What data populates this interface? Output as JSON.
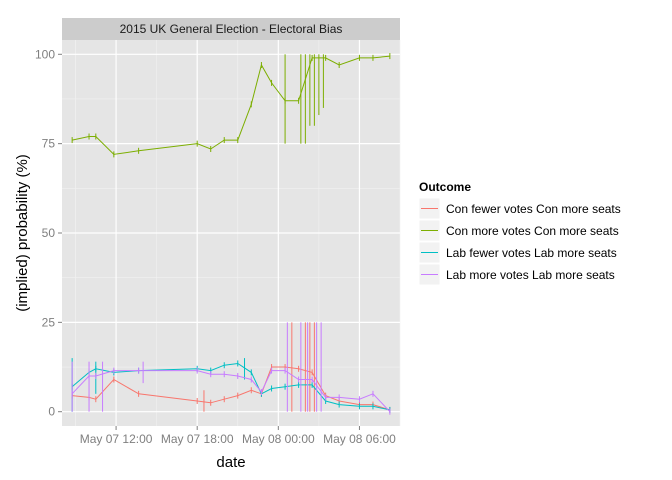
{
  "chart_data": {
    "type": "line",
    "title": "2015 UK General Election - Electoral Bias",
    "xlabel": "date",
    "ylabel": "(implied) probability (%)",
    "x_is_time": true,
    "x_range": [
      "2015-05-07T08:00",
      "2015-05-08T09:00"
    ],
    "ylim": [
      -4,
      104
    ],
    "x_ticks": [
      {
        "value": "2015-05-07T12:00",
        "label": "May 07 12:00"
      },
      {
        "value": "2015-05-07T18:00",
        "label": "May 07 18:00"
      },
      {
        "value": "2015-05-08T00:00",
        "label": "May 08 00:00"
      },
      {
        "value": "2015-05-08T06:00",
        "label": "May 08 06:00"
      }
    ],
    "y_ticks": [
      0,
      25,
      50,
      75,
      100
    ],
    "grid": true,
    "legend": {
      "title": "Outcome",
      "position": "right"
    },
    "series": [
      {
        "name": "Con fewer votes Con more seats",
        "color": "#F8766D",
        "points": [
          [
            "2015-05-07T08:45",
            4.5
          ],
          [
            "2015-05-07T10:00",
            4.0
          ],
          [
            "2015-05-07T10:30",
            3.5
          ],
          [
            "2015-05-07T11:50",
            9.0
          ],
          [
            "2015-05-07T13:40",
            5.0
          ],
          [
            "2015-05-07T18:00",
            3.0
          ],
          [
            "2015-05-07T19:00",
            2.5
          ],
          [
            "2015-05-07T20:00",
            3.5
          ],
          [
            "2015-05-07T21:00",
            4.5
          ],
          [
            "2015-05-07T22:00",
            6.0
          ],
          [
            "2015-05-07T22:45",
            5.0
          ],
          [
            "2015-05-07T23:30",
            12.5
          ],
          [
            "2015-05-08T00:30",
            12.5
          ],
          [
            "2015-05-08T01:30",
            12.0
          ],
          [
            "2015-05-08T02:30",
            11.0
          ],
          [
            "2015-05-08T03:30",
            4.5
          ],
          [
            "2015-05-08T04:30",
            3.0
          ],
          [
            "2015-05-08T06:00",
            2.0
          ],
          [
            "2015-05-08T07:00",
            2.0
          ],
          [
            "2015-05-08T08:15",
            0.5
          ]
        ],
        "spikes": [
          [
            "2015-05-07T18:30",
            0,
            6
          ],
          [
            "2015-05-08T02:00",
            0,
            25
          ],
          [
            "2015-05-08T02:20",
            0,
            25
          ],
          [
            "2015-05-08T02:40",
            0,
            25
          ],
          [
            "2015-05-08T01:00",
            0,
            25
          ]
        ]
      },
      {
        "name": "Con more votes Con more seats",
        "color": "#7CAE00",
        "points": [
          [
            "2015-05-07T08:45",
            76.0
          ],
          [
            "2015-05-07T10:00",
            77.0
          ],
          [
            "2015-05-07T10:30",
            77.0
          ],
          [
            "2015-05-07T11:50",
            72.0
          ],
          [
            "2015-05-07T13:40",
            73.0
          ],
          [
            "2015-05-07T18:00",
            75.0
          ],
          [
            "2015-05-07T19:00",
            73.5
          ],
          [
            "2015-05-07T20:00",
            76.0
          ],
          [
            "2015-05-07T21:00",
            76.0
          ],
          [
            "2015-05-07T22:00",
            86.0
          ],
          [
            "2015-05-07T22:45",
            97.0
          ],
          [
            "2015-05-07T23:30",
            92.0
          ],
          [
            "2015-05-08T00:30",
            87.0
          ],
          [
            "2015-05-08T01:30",
            87.0
          ],
          [
            "2015-05-08T02:30",
            99.0
          ],
          [
            "2015-05-08T03:30",
            99.0
          ],
          [
            "2015-05-08T04:30",
            97.0
          ],
          [
            "2015-05-08T06:00",
            99.0
          ],
          [
            "2015-05-08T07:00",
            99.0
          ],
          [
            "2015-05-08T08:15",
            99.5
          ]
        ],
        "spikes": [
          [
            "2015-05-08T00:30",
            75,
            100
          ],
          [
            "2015-05-08T01:40",
            75,
            100
          ],
          [
            "2015-05-08T02:00",
            75,
            100
          ],
          [
            "2015-05-08T02:20",
            80,
            100
          ],
          [
            "2015-05-08T02:40",
            80,
            100
          ],
          [
            "2015-05-08T03:00",
            83,
            100
          ],
          [
            "2015-05-08T03:20",
            85,
            100
          ]
        ]
      },
      {
        "name": "Lab fewer votes Lab more seats",
        "color": "#00BFC4",
        "points": [
          [
            "2015-05-07T08:45",
            7.0
          ],
          [
            "2015-05-07T10:00",
            11.0
          ],
          [
            "2015-05-07T10:30",
            12.0
          ],
          [
            "2015-05-07T11:50",
            11.0
          ],
          [
            "2015-05-07T13:40",
            11.5
          ],
          [
            "2015-05-07T18:00",
            12.0
          ],
          [
            "2015-05-07T19:00",
            11.5
          ],
          [
            "2015-05-07T20:00",
            13.0
          ],
          [
            "2015-05-07T21:00",
            13.5
          ],
          [
            "2015-05-07T22:00",
            11.0
          ],
          [
            "2015-05-07T22:45",
            5.0
          ],
          [
            "2015-05-07T23:30",
            6.5
          ],
          [
            "2015-05-08T00:30",
            7.0
          ],
          [
            "2015-05-08T01:30",
            7.5
          ],
          [
            "2015-05-08T02:30",
            7.5
          ],
          [
            "2015-05-08T03:30",
            3.0
          ],
          [
            "2015-05-08T04:30",
            2.0
          ],
          [
            "2015-05-08T06:00",
            1.5
          ],
          [
            "2015-05-08T07:00",
            1.5
          ],
          [
            "2015-05-08T08:15",
            0.5
          ]
        ],
        "spikes": [
          [
            "2015-05-07T08:45",
            0,
            15
          ],
          [
            "2015-05-07T10:30",
            5,
            14
          ],
          [
            "2015-05-07T21:30",
            9,
            15
          ]
        ]
      },
      {
        "name": "Lab more votes Lab more seats",
        "color": "#C77CFF",
        "points": [
          [
            "2015-05-07T08:45",
            5.0
          ],
          [
            "2015-05-07T10:00",
            10.0
          ],
          [
            "2015-05-07T10:30",
            10.0
          ],
          [
            "2015-05-07T11:50",
            11.5
          ],
          [
            "2015-05-07T13:40",
            11.5
          ],
          [
            "2015-05-07T18:00",
            11.5
          ],
          [
            "2015-05-07T19:00",
            10.5
          ],
          [
            "2015-05-07T20:00",
            10.5
          ],
          [
            "2015-05-07T21:00",
            10.0
          ],
          [
            "2015-05-07T22:00",
            9.0
          ],
          [
            "2015-05-07T22:45",
            5.5
          ],
          [
            "2015-05-07T23:30",
            11.5
          ],
          [
            "2015-05-08T00:30",
            11.5
          ],
          [
            "2015-05-08T01:30",
            9.0
          ],
          [
            "2015-05-08T02:30",
            9.0
          ],
          [
            "2015-05-08T03:30",
            4.0
          ],
          [
            "2015-05-08T04:30",
            4.0
          ],
          [
            "2015-05-08T06:00",
            3.5
          ],
          [
            "2015-05-08T07:00",
            5.0
          ],
          [
            "2015-05-08T08:15",
            0.0
          ]
        ],
        "spikes": [
          [
            "2015-05-07T08:45",
            0,
            14
          ],
          [
            "2015-05-07T10:00",
            0,
            14
          ],
          [
            "2015-05-07T11:00",
            0,
            14
          ],
          [
            "2015-05-07T14:00",
            8,
            14
          ],
          [
            "2015-05-08T00:40",
            0,
            25
          ],
          [
            "2015-05-08T01:40",
            0,
            25
          ],
          [
            "2015-05-08T02:10",
            0,
            25
          ],
          [
            "2015-05-08T02:50",
            0,
            25
          ],
          [
            "2015-05-08T03:10",
            0,
            25
          ]
        ]
      }
    ]
  }
}
